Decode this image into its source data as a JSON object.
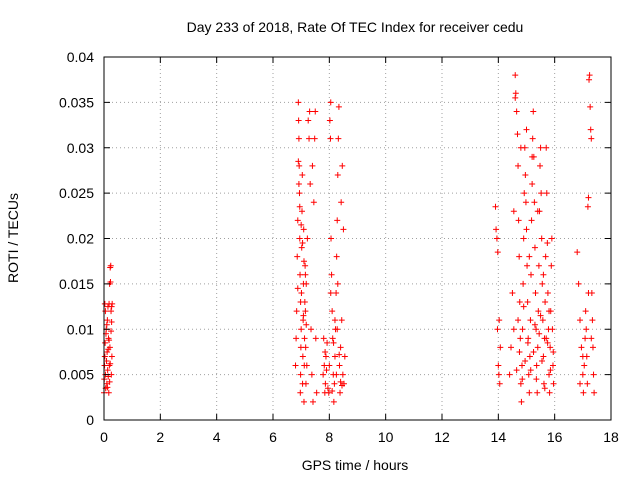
{
  "chart_data": {
    "type": "scatter",
    "title": "Day 233 of 2018, Rate Of TEC Index for receiver cedu",
    "xlabel": "GPS time / hours",
    "ylabel": "ROTI / TECUs",
    "xlim": [
      0,
      18
    ],
    "ylim": [
      0,
      0.04
    ],
    "xticks": [
      0,
      2,
      4,
      6,
      8,
      10,
      12,
      14,
      16,
      18
    ],
    "xtick_labels": [
      "0",
      "2",
      "4",
      "6",
      "8",
      "10",
      "12",
      "14",
      "16",
      "18"
    ],
    "yticks": [
      0,
      0.005,
      0.01,
      0.015,
      0.02,
      0.025,
      0.03,
      0.035,
      0.04
    ],
    "ytick_labels": [
      "0",
      "0.005",
      "0.01",
      "0.015",
      "0.02",
      "0.025",
      "0.03",
      "0.035",
      "0.04"
    ],
    "grid": true,
    "marker": "+",
    "color": "#ff0000",
    "series": [
      {
        "name": "ROTI",
        "points": [
          [
            0.0,
            0.003
          ],
          [
            0.01,
            0.0045
          ],
          [
            0.02,
            0.006
          ],
          [
            0.03,
            0.007
          ],
          [
            0.04,
            0.0085
          ],
          [
            0.05,
            0.005
          ],
          [
            0.06,
            0.0035
          ],
          [
            0.07,
            0.0095
          ],
          [
            0.08,
            0.01
          ],
          [
            0.09,
            0.0065
          ],
          [
            0.1,
            0.004
          ],
          [
            0.11,
            0.0075
          ],
          [
            0.12,
            0.011
          ],
          [
            0.13,
            0.0055
          ],
          [
            0.14,
            0.0125
          ],
          [
            0.15,
            0.0048
          ],
          [
            0.16,
            0.009
          ],
          [
            0.17,
            0.003
          ],
          [
            0.18,
            0.0128
          ],
          [
            0.19,
            0.006
          ],
          [
            0.2,
            0.015
          ],
          [
            0.21,
            0.008
          ],
          [
            0.22,
            0.0168
          ],
          [
            0.23,
            0.0152
          ],
          [
            0.24,
            0.017
          ],
          [
            0.25,
            0.012
          ],
          [
            0.26,
            0.005
          ],
          [
            0.27,
            0.0125
          ],
          [
            0.28,
            0.007
          ],
          [
            0.29,
            0.0128
          ],
          [
            0.05,
            0.012
          ],
          [
            0.1,
            0.0105
          ],
          [
            0.15,
            0.0078
          ],
          [
            0.2,
            0.0042
          ],
          [
            0.25,
            0.0098
          ],
          [
            0.03,
            0.0128
          ],
          [
            0.12,
            0.0036
          ],
          [
            0.18,
            0.0088
          ],
          [
            0.22,
            0.0062
          ],
          [
            0.27,
            0.0108
          ],
          [
            6.8,
            0.006
          ],
          [
            6.82,
            0.009
          ],
          [
            6.84,
            0.012
          ],
          [
            6.86,
            0.018
          ],
          [
            6.88,
            0.022
          ],
          [
            6.9,
            0.035
          ],
          [
            6.91,
            0.033
          ],
          [
            6.92,
            0.031
          ],
          [
            6.93,
            0.028
          ],
          [
            6.94,
            0.025
          ],
          [
            6.95,
            0.02
          ],
          [
            6.96,
            0.016
          ],
          [
            6.97,
            0.003
          ],
          [
            6.98,
            0.005
          ],
          [
            6.99,
            0.008
          ],
          [
            7.0,
            0.01
          ],
          [
            7.01,
            0.014
          ],
          [
            7.02,
            0.019
          ],
          [
            7.03,
            0.023
          ],
          [
            7.04,
            0.027
          ],
          [
            7.05,
            0.004
          ],
          [
            7.06,
            0.007
          ],
          [
            7.07,
            0.011
          ],
          [
            7.08,
            0.015
          ],
          [
            7.09,
            0.021
          ],
          [
            7.1,
            0.002
          ],
          [
            7.11,
            0.006
          ],
          [
            7.12,
            0.009
          ],
          [
            7.13,
            0.013
          ],
          [
            7.14,
            0.017
          ],
          [
            7.15,
            0.012
          ],
          [
            7.16,
            0.008
          ],
          [
            7.17,
            0.004
          ],
          [
            7.18,
            0.015
          ],
          [
            7.2,
            0.006
          ],
          [
            7.22,
            0.02
          ],
          [
            7.25,
            0.033
          ],
          [
            7.28,
            0.031
          ],
          [
            7.3,
            0.034
          ],
          [
            7.32,
            0.026
          ],
          [
            7.35,
            0.01
          ],
          [
            7.38,
            0.005
          ],
          [
            7.4,
            0.028
          ],
          [
            7.42,
            0.002
          ],
          [
            7.45,
            0.024
          ],
          [
            7.48,
            0.031
          ],
          [
            7.5,
            0.034
          ],
          [
            7.52,
            0.009
          ],
          [
            7.55,
            0.003
          ],
          [
            6.9,
            0.0285
          ],
          [
            6.92,
            0.026
          ],
          [
            6.95,
            0.0235
          ],
          [
            7.0,
            0.0215
          ],
          [
            7.05,
            0.0195
          ],
          [
            7.1,
            0.0175
          ],
          [
            7.15,
            0.016
          ],
          [
            6.88,
            0.0145
          ],
          [
            6.98,
            0.013
          ],
          [
            7.08,
            0.0115
          ],
          [
            7.18,
            0.0105
          ],
          [
            7.78,
            0.005
          ],
          [
            7.8,
            0.009
          ],
          [
            7.82,
            0.006
          ],
          [
            7.84,
            0.003
          ],
          [
            7.85,
            0.0075
          ],
          [
            7.86,
            0.004
          ],
          [
            7.88,
            0.007
          ],
          [
            7.9,
            0.0055
          ],
          [
            7.92,
            0.0085
          ],
          [
            7.95,
            0.0035
          ],
          [
            7.98,
            0.003
          ],
          [
            8.0,
            0.006
          ],
          [
            8.02,
            0.033
          ],
          [
            8.04,
            0.031
          ],
          [
            8.05,
            0.035
          ],
          [
            8.06,
            0.02
          ],
          [
            8.08,
            0.016
          ],
          [
            8.1,
            0.012
          ],
          [
            8.12,
            0.009
          ],
          [
            8.14,
            0.005
          ],
          [
            8.16,
            0.002
          ],
          [
            8.18,
            0.004
          ],
          [
            8.2,
            0.007
          ],
          [
            8.22,
            0.01
          ],
          [
            8.24,
            0.014
          ],
          [
            8.26,
            0.018
          ],
          [
            8.28,
            0.022
          ],
          [
            8.3,
            0.027
          ],
          [
            8.32,
            0.031
          ],
          [
            8.34,
            0.0345
          ],
          [
            8.36,
            0.006
          ],
          [
            8.38,
            0.003
          ],
          [
            8.4,
            0.008
          ],
          [
            8.42,
            0.024
          ],
          [
            8.44,
            0.011
          ],
          [
            8.46,
            0.028
          ],
          [
            8.48,
            0.005
          ],
          [
            8.5,
            0.021
          ],
          [
            8.52,
            0.004
          ],
          [
            8.55,
            0.007
          ],
          [
            8.1,
            0.0032
          ],
          [
            8.2,
            0.011
          ],
          [
            8.3,
            0.015
          ],
          [
            8.4,
            0.0042
          ],
          [
            8.15,
            0.0085
          ],
          [
            8.25,
            0.005
          ],
          [
            8.35,
            0.0072
          ],
          [
            8.45,
            0.0038
          ],
          [
            8.05,
            0.014
          ],
          [
            8.28,
            0.01
          ],
          [
            13.9,
            0.0235
          ],
          [
            13.92,
            0.021
          ],
          [
            13.95,
            0.02
          ],
          [
            13.97,
            0.01
          ],
          [
            14.0,
            0.006
          ],
          [
            14.02,
            0.005
          ],
          [
            14.05,
            0.004
          ],
          [
            14.07,
            0.008
          ],
          [
            13.98,
            0.0185
          ],
          [
            14.03,
            0.011
          ],
          [
            14.4,
            0.005
          ],
          [
            14.45,
            0.008
          ],
          [
            14.5,
            0.014
          ],
          [
            14.55,
            0.023
          ],
          [
            14.6,
            0.038
          ],
          [
            14.62,
            0.036
          ],
          [
            14.65,
            0.034
          ],
          [
            14.68,
            0.0315
          ],
          [
            14.7,
            0.028
          ],
          [
            14.72,
            0.022
          ],
          [
            14.74,
            0.018
          ],
          [
            14.76,
            0.013
          ],
          [
            14.78,
            0.009
          ],
          [
            14.8,
            0.004
          ],
          [
            14.82,
            0.002
          ],
          [
            14.84,
            0.006
          ],
          [
            14.86,
            0.01
          ],
          [
            14.88,
            0.015
          ],
          [
            14.9,
            0.02
          ],
          [
            14.92,
            0.025
          ],
          [
            14.94,
            0.03
          ],
          [
            14.96,
            0.027
          ],
          [
            14.98,
            0.024
          ],
          [
            15.0,
            0.021
          ],
          [
            15.02,
            0.017
          ],
          [
            15.04,
            0.013
          ],
          [
            15.06,
            0.009
          ],
          [
            15.08,
            0.005
          ],
          [
            15.1,
            0.003
          ],
          [
            15.12,
            0.007
          ],
          [
            15.14,
            0.011
          ],
          [
            15.16,
            0.016
          ],
          [
            15.18,
            0.022
          ],
          [
            15.2,
            0.026
          ],
          [
            15.22,
            0.031
          ],
          [
            15.24,
            0.034
          ],
          [
            15.26,
            0.029
          ],
          [
            15.28,
            0.024
          ],
          [
            15.3,
            0.019
          ],
          [
            15.32,
            0.014
          ],
          [
            15.34,
            0.01
          ],
          [
            15.36,
            0.006
          ],
          [
            15.38,
            0.003
          ],
          [
            15.4,
            0.008
          ],
          [
            15.42,
            0.012
          ],
          [
            15.44,
            0.017
          ],
          [
            15.46,
            0.023
          ],
          [
            15.48,
            0.028
          ],
          [
            15.5,
            0.03
          ],
          [
            15.52,
            0.025
          ],
          [
            15.54,
            0.02
          ],
          [
            15.56,
            0.015
          ],
          [
            15.58,
            0.011
          ],
          [
            15.6,
            0.007
          ],
          [
            15.62,
            0.004
          ],
          [
            15.64,
            0.009
          ],
          [
            15.66,
            0.013
          ],
          [
            15.68,
            0.018
          ],
          [
            15.7,
            0.03
          ],
          [
            15.72,
            0.025
          ],
          [
            15.74,
            0.0195
          ],
          [
            15.76,
            0.014
          ],
          [
            15.78,
            0.01
          ],
          [
            15.8,
            0.005
          ],
          [
            15.82,
            0.003
          ],
          [
            15.84,
            0.008
          ],
          [
            15.86,
            0.012
          ],
          [
            15.88,
            0.017
          ],
          [
            15.9,
            0.02
          ],
          [
            15.92,
            0.01
          ],
          [
            15.94,
            0.006
          ],
          [
            15.96,
            0.004
          ],
          [
            14.6,
            0.0355
          ],
          [
            14.8,
            0.03
          ],
          [
            15.0,
            0.032
          ],
          [
            15.2,
            0.029
          ],
          [
            15.4,
            0.023
          ],
          [
            15.6,
            0.016
          ],
          [
            15.8,
            0.012
          ],
          [
            15.1,
            0.018
          ],
          [
            14.55,
            0.01
          ],
          [
            14.65,
            0.0055
          ],
          [
            14.75,
            0.0075
          ],
          [
            14.85,
            0.0045
          ],
          [
            14.95,
            0.0065
          ],
          [
            15.05,
            0.0085
          ],
          [
            15.15,
            0.0055
          ],
          [
            15.25,
            0.0075
          ],
          [
            15.35,
            0.0045
          ],
          [
            15.45,
            0.0095
          ],
          [
            15.55,
            0.0065
          ],
          [
            15.65,
            0.0035
          ],
          [
            15.75,
            0.0085
          ],
          [
            15.85,
            0.0055
          ],
          [
            15.95,
            0.0075
          ],
          [
            14.7,
            0.011
          ],
          [
            15.3,
            0.0105
          ],
          [
            15.5,
            0.0115
          ],
          [
            14.9,
            0.0125
          ],
          [
            15.7,
            0.009
          ],
          [
            16.8,
            0.0185
          ],
          [
            16.85,
            0.015
          ],
          [
            16.9,
            0.011
          ],
          [
            16.95,
            0.008
          ],
          [
            17.0,
            0.005
          ],
          [
            17.02,
            0.003
          ],
          [
            17.05,
            0.006
          ],
          [
            17.08,
            0.009
          ],
          [
            17.1,
            0.012
          ],
          [
            17.12,
            0.01
          ],
          [
            17.14,
            0.007
          ],
          [
            17.16,
            0.004
          ],
          [
            17.18,
            0.0235
          ],
          [
            17.2,
            0.0245
          ],
          [
            17.22,
            0.0375
          ],
          [
            17.24,
            0.038
          ],
          [
            17.26,
            0.0345
          ],
          [
            17.28,
            0.032
          ],
          [
            17.3,
            0.031
          ],
          [
            17.32,
            0.014
          ],
          [
            17.34,
            0.011
          ],
          [
            17.36,
            0.008
          ],
          [
            17.38,
            0.005
          ],
          [
            17.4,
            0.003
          ],
          [
            17.2,
            0.014
          ],
          [
            17.3,
            0.009
          ],
          [
            16.9,
            0.004
          ],
          [
            17.0,
            0.007
          ]
        ]
      }
    ]
  }
}
